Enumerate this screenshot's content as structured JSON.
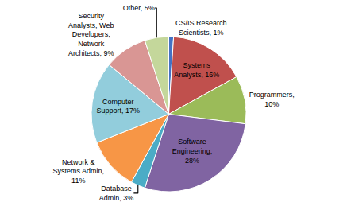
{
  "chart_data": {
    "type": "pie",
    "categories": [
      "CS/IS Research\nScientists, 1%",
      "Systems\nAnalysts, 16%",
      "Programmers,\n10%",
      "Software\nEngineering,\n28%",
      "Database\nAdmin, 3%",
      "Network &\nSystems Admin,\n11%",
      "Computer\nSupport, 17%",
      "Security\nAnalysts, Web\nDevelopers,\nNetwork\nArchitects, 9%",
      "Other, 5%"
    ],
    "values": [
      1,
      16,
      10,
      28,
      3,
      11,
      17,
      9,
      5
    ],
    "colors": [
      "#4472C4",
      "#C0504D",
      "#9BBB59",
      "#8064A2",
      "#4BACC6",
      "#F79646",
      "#92CDDC",
      "#D99694",
      "#C4D79B"
    ]
  }
}
